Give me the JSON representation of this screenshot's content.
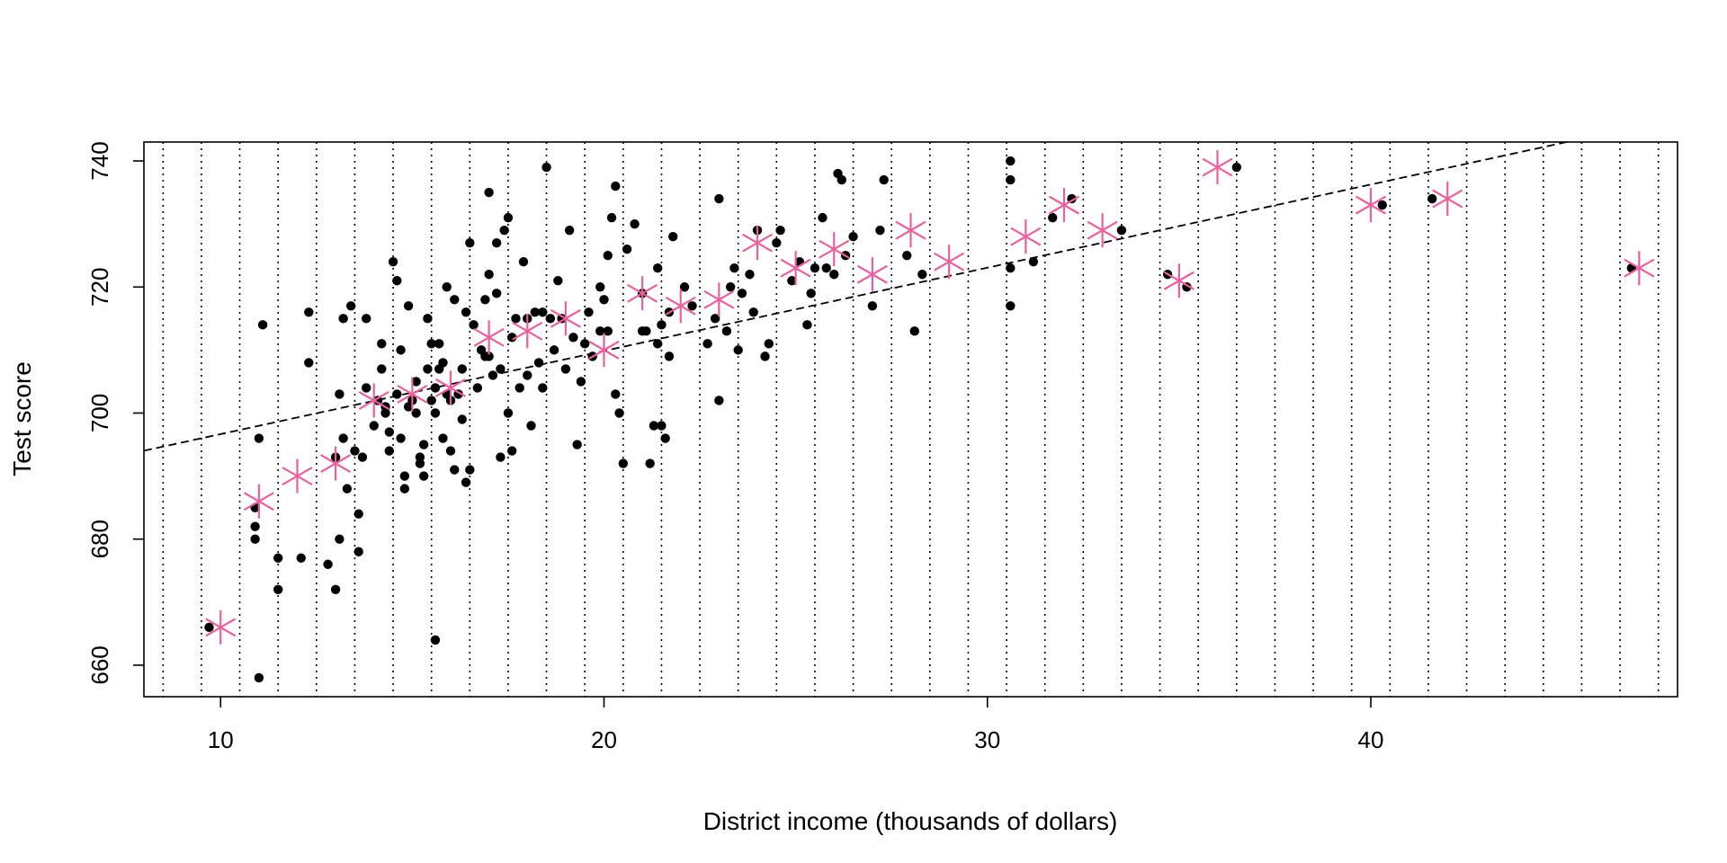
{
  "chart_data": {
    "type": "scatter",
    "title": "",
    "xlabel": "District income (thousands of dollars)",
    "ylabel": "Test score",
    "xlim": [
      8,
      48
    ],
    "ylim": [
      655,
      743
    ],
    "xticks": [
      10,
      20,
      30,
      40
    ],
    "yticks": [
      660,
      680,
      700,
      720,
      740
    ],
    "x_tick_labels": [
      "10",
      "20",
      "30",
      "40"
    ],
    "y_tick_labels": [
      "660",
      "680",
      "700",
      "720",
      "740"
    ],
    "grid": "vertical dotted lines at half-integer income bin edges",
    "colors": {
      "points": "#000000",
      "bin_means": "#e8609e",
      "fit_line": "#000000",
      "grid": "#000000"
    },
    "series": [
      {
        "kind": "points",
        "marker": "filled-circle",
        "points": [
          [
            9.7,
            666
          ],
          [
            10.9,
            685
          ],
          [
            10.9,
            682
          ],
          [
            10.9,
            680
          ],
          [
            11.0,
            696
          ],
          [
            11.1,
            714
          ],
          [
            11.0,
            658
          ],
          [
            11.5,
            677
          ],
          [
            11.5,
            672
          ],
          [
            12.1,
            677
          ],
          [
            12.3,
            716
          ],
          [
            12.3,
            708
          ],
          [
            12.8,
            676
          ],
          [
            13.0,
            693
          ],
          [
            13.0,
            672
          ],
          [
            13.1,
            703
          ],
          [
            13.1,
            680
          ],
          [
            13.2,
            715
          ],
          [
            13.2,
            696
          ],
          [
            13.3,
            688
          ],
          [
            13.4,
            717
          ],
          [
            13.5,
            694
          ],
          [
            13.6,
            678
          ],
          [
            13.6,
            684
          ],
          [
            13.7,
            693
          ],
          [
            13.8,
            704
          ],
          [
            13.8,
            715
          ],
          [
            14.0,
            698
          ],
          [
            14.1,
            702
          ],
          [
            14.2,
            711
          ],
          [
            14.2,
            707
          ],
          [
            14.3,
            701
          ],
          [
            14.3,
            700
          ],
          [
            14.4,
            697
          ],
          [
            14.4,
            694
          ],
          [
            14.5,
            724
          ],
          [
            14.6,
            721
          ],
          [
            14.6,
            703
          ],
          [
            14.7,
            710
          ],
          [
            14.7,
            696
          ],
          [
            14.8,
            690
          ],
          [
            14.8,
            688
          ],
          [
            14.9,
            717
          ],
          [
            14.9,
            701
          ],
          [
            15.0,
            702
          ],
          [
            15.1,
            705
          ],
          [
            15.1,
            700
          ],
          [
            15.2,
            693
          ],
          [
            15.2,
            692
          ],
          [
            15.3,
            695
          ],
          [
            15.3,
            690
          ],
          [
            15.4,
            707
          ],
          [
            15.4,
            715
          ],
          [
            15.5,
            711
          ],
          [
            15.5,
            702
          ],
          [
            15.6,
            704
          ],
          [
            15.6,
            700
          ],
          [
            15.6,
            664
          ],
          [
            15.7,
            711
          ],
          [
            15.7,
            707
          ],
          [
            15.8,
            696
          ],
          [
            15.8,
            708
          ],
          [
            15.9,
            720
          ],
          [
            15.9,
            703
          ],
          [
            16.0,
            694
          ],
          [
            16.0,
            702
          ],
          [
            16.1,
            718
          ],
          [
            16.1,
            691
          ],
          [
            16.2,
            703
          ],
          [
            16.3,
            707
          ],
          [
            16.3,
            699
          ],
          [
            16.4,
            689
          ],
          [
            16.4,
            716
          ],
          [
            16.5,
            727
          ],
          [
            16.5,
            691
          ],
          [
            16.6,
            714
          ],
          [
            16.7,
            704
          ],
          [
            16.8,
            710
          ],
          [
            16.9,
            718
          ],
          [
            16.9,
            709
          ],
          [
            17.0,
            735
          ],
          [
            17.0,
            722
          ],
          [
            17.0,
            709
          ],
          [
            17.1,
            706
          ],
          [
            17.2,
            719
          ],
          [
            17.2,
            727
          ],
          [
            17.3,
            693
          ],
          [
            17.3,
            707
          ],
          [
            17.4,
            729
          ],
          [
            17.5,
            731
          ],
          [
            17.5,
            700
          ],
          [
            17.6,
            712
          ],
          [
            17.6,
            694
          ],
          [
            17.7,
            715
          ],
          [
            17.8,
            704
          ],
          [
            17.9,
            724
          ],
          [
            18.0,
            715
          ],
          [
            18.0,
            706
          ],
          [
            18.1,
            698
          ],
          [
            18.2,
            716
          ],
          [
            18.3,
            708
          ],
          [
            18.4,
            716
          ],
          [
            18.4,
            704
          ],
          [
            18.5,
            739
          ],
          [
            18.6,
            715
          ],
          [
            18.7,
            710
          ],
          [
            18.8,
            721
          ],
          [
            18.9,
            715
          ],
          [
            19.0,
            707
          ],
          [
            19.1,
            729
          ],
          [
            19.2,
            712
          ],
          [
            19.3,
            695
          ],
          [
            19.4,
            705
          ],
          [
            19.5,
            711
          ],
          [
            19.6,
            716
          ],
          [
            19.7,
            709
          ],
          [
            19.9,
            720
          ],
          [
            19.9,
            713
          ],
          [
            20.0,
            718
          ],
          [
            20.1,
            725
          ],
          [
            20.1,
            713
          ],
          [
            20.2,
            731
          ],
          [
            20.3,
            736
          ],
          [
            20.3,
            703
          ],
          [
            20.4,
            700
          ],
          [
            20.5,
            692
          ],
          [
            20.6,
            726
          ],
          [
            20.8,
            730
          ],
          [
            21.0,
            719
          ],
          [
            21.0,
            713
          ],
          [
            21.1,
            713
          ],
          [
            21.2,
            692
          ],
          [
            21.3,
            698
          ],
          [
            21.4,
            723
          ],
          [
            21.4,
            711
          ],
          [
            21.5,
            698
          ],
          [
            21.5,
            714
          ],
          [
            21.6,
            696
          ],
          [
            21.7,
            709
          ],
          [
            21.7,
            716
          ],
          [
            21.8,
            728
          ],
          [
            22.1,
            720
          ],
          [
            22.3,
            717
          ],
          [
            22.7,
            711
          ],
          [
            22.9,
            715
          ],
          [
            23.0,
            734
          ],
          [
            23.0,
            702
          ],
          [
            23.2,
            713
          ],
          [
            23.3,
            720
          ],
          [
            23.4,
            723
          ],
          [
            23.5,
            710
          ],
          [
            23.6,
            719
          ],
          [
            23.8,
            722
          ],
          [
            23.9,
            716
          ],
          [
            24.0,
            729
          ],
          [
            24.2,
            709
          ],
          [
            24.3,
            711
          ],
          [
            24.5,
            727
          ],
          [
            24.6,
            729
          ],
          [
            24.9,
            721
          ],
          [
            25.1,
            724
          ],
          [
            25.3,
            714
          ],
          [
            25.4,
            719
          ],
          [
            25.5,
            723
          ],
          [
            25.7,
            731
          ],
          [
            25.8,
            723
          ],
          [
            26.0,
            722
          ],
          [
            26.1,
            738
          ],
          [
            26.2,
            737
          ],
          [
            26.3,
            725
          ],
          [
            26.5,
            728
          ],
          [
            27.0,
            717
          ],
          [
            27.2,
            729
          ],
          [
            27.3,
            737
          ],
          [
            27.9,
            725
          ],
          [
            28.1,
            713
          ],
          [
            28.3,
            722
          ],
          [
            30.6,
            737
          ],
          [
            30.6,
            740
          ],
          [
            30.6,
            723
          ],
          [
            30.6,
            717
          ],
          [
            31.2,
            724
          ],
          [
            31.7,
            731
          ],
          [
            32.2,
            734
          ],
          [
            33.5,
            729
          ],
          [
            34.7,
            722
          ],
          [
            35.2,
            720
          ],
          [
            36.5,
            739
          ],
          [
            40.3,
            733
          ],
          [
            41.6,
            734
          ],
          [
            46.8,
            723
          ]
        ]
      },
      {
        "kind": "bin_means",
        "marker": "asterisk",
        "points": [
          [
            10,
            666
          ],
          [
            11,
            686
          ],
          [
            12,
            690
          ],
          [
            13,
            692
          ],
          [
            14,
            702
          ],
          [
            15,
            703
          ],
          [
            16,
            704
          ],
          [
            17,
            712
          ],
          [
            18,
            713
          ],
          [
            19,
            715
          ],
          [
            20,
            710
          ],
          [
            21,
            719
          ],
          [
            22,
            717
          ],
          [
            23,
            718
          ],
          [
            24,
            727
          ],
          [
            25,
            723
          ],
          [
            26,
            726
          ],
          [
            27,
            722
          ],
          [
            28,
            729
          ],
          [
            29,
            724
          ],
          [
            31,
            728
          ],
          [
            32,
            733
          ],
          [
            33,
            729
          ],
          [
            35,
            721
          ],
          [
            36,
            739
          ],
          [
            40,
            733
          ],
          [
            42,
            734
          ],
          [
            47,
            723
          ]
        ]
      },
      {
        "kind": "fit_line",
        "style": "dashed",
        "intercept": 683.46,
        "slope": 1.32
      }
    ]
  }
}
